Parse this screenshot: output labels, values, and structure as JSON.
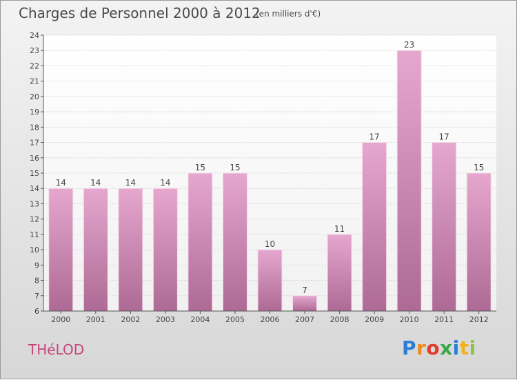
{
  "header": {
    "title": "Charges de Personnel 2000 à 2012",
    "subtitle": "(en milliers d'€)"
  },
  "footer": {
    "commune": "THéLOD",
    "logo_letters": [
      "P",
      "r",
      "o",
      "x",
      "i",
      "t",
      "i"
    ],
    "logo_colors": [
      "#2a7fd4",
      "#f08a1c",
      "#e23b2b",
      "#3aa84a",
      "#2a7fd4",
      "#f0b21c",
      "#8cc63f"
    ]
  },
  "chart_data": {
    "type": "bar",
    "categories": [
      "2000",
      "2001",
      "2002",
      "2003",
      "2004",
      "2005",
      "2006",
      "2007",
      "2008",
      "2009",
      "2010",
      "2011",
      "2012"
    ],
    "values": [
      14,
      14,
      14,
      14,
      15,
      15,
      10,
      7,
      11,
      17,
      23,
      17,
      15
    ],
    "title": "Charges de Personnel 2000 à 2012",
    "subtitle": "(en milliers d'€)",
    "xlabel": "",
    "ylabel": "",
    "ylim": [
      6,
      24
    ],
    "yticks": [
      "6",
      "7",
      "8",
      "9",
      "10",
      "11",
      "12",
      "13",
      "14",
      "15",
      "16",
      "17",
      "18",
      "19",
      "20",
      "21",
      "22",
      "23",
      "24"
    ],
    "grid": true,
    "bar_color": "#d98fbb"
  }
}
